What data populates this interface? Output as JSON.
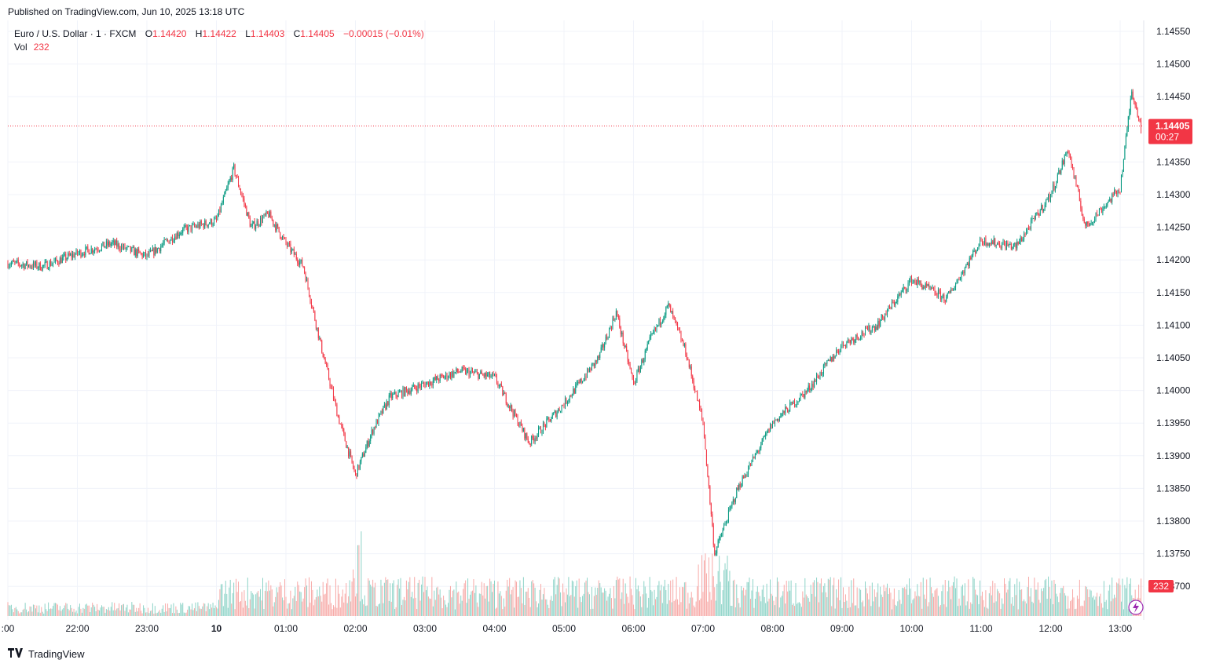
{
  "header": {
    "published": "Published on TradingView.com, Jun 10, 2025 13:18 UTC"
  },
  "legend": {
    "symbol": "Euro / U.S. Dollar · 1 · FXCM",
    "open_label": "O",
    "open": "1.14420",
    "high_label": "H",
    "high": "1.14422",
    "low_label": "L",
    "low": "1.14403",
    "close_label": "C",
    "close": "1.14405",
    "change": "−0.00015 (−0.01%)",
    "vol_label": "Vol",
    "vol": "232"
  },
  "price_badge": {
    "price": "1.14405",
    "countdown": "00:27"
  },
  "volume_badge": "232",
  "footer": {
    "brand": "TradingView"
  },
  "colors": {
    "up": "#089981",
    "down": "#f23645",
    "vol_up": "#8dd3c7",
    "vol_down": "#f7a9a7",
    "grid": "#f0f3fa"
  },
  "chart_data": {
    "type": "candlestick",
    "title": "Euro / U.S. Dollar · 1 · FXCM",
    "xlabel": "",
    "ylabel": "",
    "x_ticks": [
      ":00",
      "22:00",
      "23:00",
      "10",
      "01:00",
      "02:00",
      "03:00",
      "04:00",
      "05:00",
      "06:00",
      "07:00",
      "08:00",
      "09:00",
      "10:00",
      "11:00",
      "12:00",
      "13:00"
    ],
    "y_ticks": [
      "1.14550",
      "1.14500",
      "1.14450",
      "1.14350",
      "1.14300",
      "1.14250",
      "1.14200",
      "1.14150",
      "1.14100",
      "1.14050",
      "1.14000",
      "1.13950",
      "1.13900",
      "1.13850",
      "1.13800",
      "1.13750",
      "1.13700"
    ],
    "ylim": [
      1.1366,
      1.1458
    ],
    "last_price": 1.14405,
    "grid": true,
    "approx_price_path": {
      "time": [
        "21:00",
        "21:30",
        "22:00",
        "22:30",
        "23:00",
        "23:30",
        "00:00",
        "00:15",
        "00:30",
        "00:45",
        "01:00",
        "01:15",
        "01:30",
        "01:45",
        "02:00",
        "02:15",
        "02:30",
        "03:00",
        "03:30",
        "04:00",
        "04:30",
        "05:00",
        "05:30",
        "05:45",
        "06:00",
        "06:15",
        "06:30",
        "06:45",
        "07:00",
        "07:10",
        "07:30",
        "08:00",
        "08:30",
        "09:00",
        "09:30",
        "10:00",
        "10:30",
        "11:00",
        "11:30",
        "12:00",
        "12:15",
        "12:30",
        "12:45",
        "13:00",
        "13:10",
        "13:18"
      ],
      "price": [
        1.14195,
        1.1419,
        1.1421,
        1.14225,
        1.14205,
        1.14245,
        1.1426,
        1.1434,
        1.1425,
        1.1427,
        1.14225,
        1.1419,
        1.1407,
        1.1396,
        1.1387,
        1.1394,
        1.1399,
        1.1401,
        1.1403,
        1.1402,
        1.1392,
        1.1398,
        1.1405,
        1.1412,
        1.1401,
        1.1408,
        1.1413,
        1.1406,
        1.1395,
        1.1375,
        1.1385,
        1.1395,
        1.14,
        1.1407,
        1.141,
        1.1417,
        1.1414,
        1.1423,
        1.1422,
        1.143,
        1.1437,
        1.1425,
        1.1428,
        1.1431,
        1.1446,
        1.14405
      ]
    },
    "volume": {
      "last": 232
    }
  }
}
